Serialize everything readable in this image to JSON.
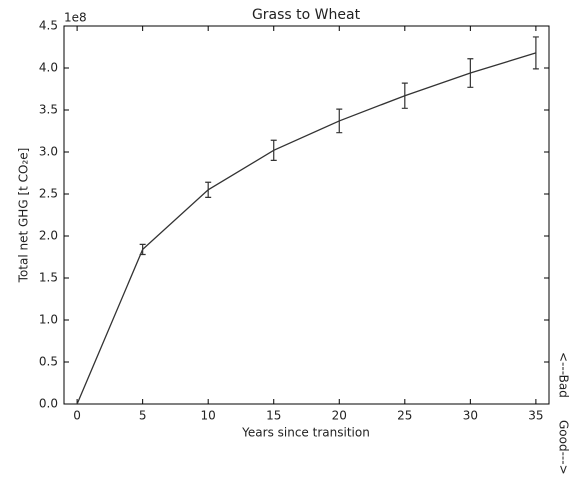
{
  "chart_data": {
    "type": "line",
    "title": "Grass to Wheat",
    "x_label": "Years since transition",
    "y_label": "Total net GHG [t CO₂e]",
    "y_offset_label": "1e8",
    "annotations": [
      "<---Bad",
      "Good--->"
    ],
    "x": [
      0,
      5,
      10,
      15,
      20,
      25,
      30,
      35
    ],
    "series": [
      {
        "color": "#333333",
        "values": [
          0,
          1.84,
          2.55,
          3.02,
          3.37,
          3.67,
          3.94,
          4.18
        ],
        "errors": [
          0,
          0.06,
          0.09,
          0.12,
          0.14,
          0.15,
          0.17,
          0.19
        ]
      }
    ],
    "xlim": [
      -1,
      36
    ],
    "xticks": [
      0,
      5,
      10,
      15,
      20,
      25,
      30,
      35
    ],
    "ylim": [
      0,
      4.5
    ],
    "yticks": [
      {
        "value": 0,
        "label": "0.0"
      },
      0.5,
      {
        "value": 1,
        "label": "1.0"
      },
      1.5,
      {
        "value": 2,
        "label": "2.0"
      },
      2.5,
      {
        "value": 3,
        "label": "3.0"
      },
      3.5,
      {
        "value": 4,
        "label": "4.0"
      },
      4.5
    ],
    "grid": false
  }
}
